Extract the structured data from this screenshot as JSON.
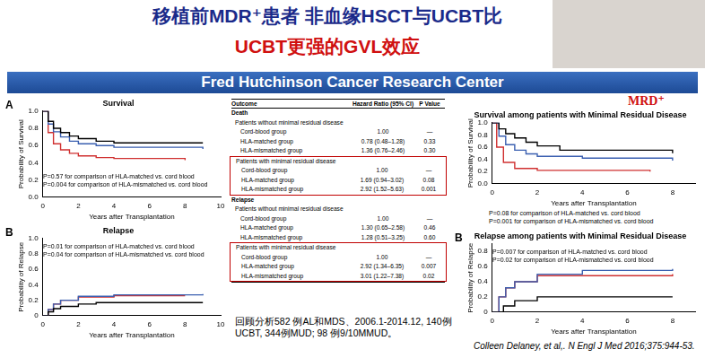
{
  "slide": {
    "title": "移植前MDR⁺患者  非血缘HSCT与UCBT比",
    "subtitle": "UCBT更强的GVL效应",
    "banner": "Fred Hutchinson Cancer Research Center",
    "badge": "MRD⁺",
    "note": "回顾分析582 例AL和MDS、2006.1-2014.12, 140例UCBT, 344例MUD; 98 例9/10MMUD。",
    "citation": "Colleen Delaney, et al,. N Engl J Med 2016;375:944-53."
  },
  "table": {
    "columns": [
      "Outcome",
      "Hazard Ratio (95% CI)",
      "P Value"
    ],
    "sections": [
      {
        "title": "Death",
        "groups": [
          {
            "title": "Patients without minimal residual disease",
            "rows": [
              [
                "Cord-blood group",
                "1.00",
                "—"
              ],
              [
                "HLA-matched group",
                "0.78 (0.48–1.28)",
                "0.33"
              ],
              [
                "HLA-mismatched group",
                "1.36 (0.76–2.46)",
                "0.30"
              ]
            ]
          },
          {
            "title": "Patients with minimal residual disease",
            "rows": [
              [
                "Cord-blood group",
                "1.00",
                "—"
              ],
              [
                "HLA-matched group",
                "1.69 (0.94–3.02)",
                "0.08"
              ],
              [
                "HLA-mismatched group",
                "2.92 (1.52–5.63)",
                "0.001"
              ]
            ]
          }
        ]
      },
      {
        "title": "Relapse",
        "groups": [
          {
            "title": "Patients without minimal residual disease",
            "rows": [
              [
                "Cord-blood group",
                "1.00",
                "—"
              ],
              [
                "HLA-matched group",
                "1.30 (0.65–2.58)",
                "0.46"
              ],
              [
                "HLA-mismatched group",
                "1.28 (0.51–3.25)",
                "0.60"
              ]
            ]
          },
          {
            "title": "Patients with minimal residual disease",
            "rows": [
              [
                "Cord-blood group",
                "1.00",
                "—"
              ],
              [
                "HLA-matched group",
                "2.92 (1.34–6.35)",
                "0.007"
              ],
              [
                "HLA-mismatched group",
                "3.01 (1.22–7.38)",
                "0.02"
              ]
            ]
          }
        ]
      }
    ]
  },
  "chart_data": [
    {
      "type": "line",
      "label": "A",
      "title": "Survival",
      "x_label": "Years after Transplantation",
      "y_label": "Probability of Survival",
      "xlim": [
        0,
        10
      ],
      "xticks": [
        0,
        2,
        4,
        6,
        8,
        10
      ],
      "ylim": [
        0,
        1
      ],
      "yticks": [
        {
          "value": 0,
          "label": "0.0"
        },
        0.2,
        0.4,
        0.6,
        0.8,
        {
          "value": 1,
          "label": "1.0"
        }
      ],
      "grid": false,
      "annotations": [
        "P=0.57 for comparison of HLA-matched vs. cord blood",
        "P=0.004 for comparison of HLA-mismatched vs. cord blood"
      ],
      "series": [
        {
          "color": "#000000",
          "line_style": "steps",
          "x": [
            0,
            0.3,
            0.6,
            1,
            1.5,
            2,
            3,
            4,
            9
          ],
          "values": [
            1,
            0.88,
            0.8,
            0.75,
            0.71,
            0.68,
            0.65,
            0.63,
            0.63
          ]
        },
        {
          "color": "#3a5fb0",
          "line_style": "steps",
          "x": [
            0,
            0.3,
            0.6,
            1,
            1.5,
            2,
            3,
            4,
            9
          ],
          "values": [
            1,
            0.85,
            0.76,
            0.7,
            0.65,
            0.62,
            0.6,
            0.58,
            0.56
          ]
        },
        {
          "color": "#d03030",
          "line_style": "steps",
          "x": [
            0,
            0.3,
            0.6,
            1,
            1.5,
            2,
            3,
            4,
            8
          ],
          "values": [
            1,
            0.75,
            0.62,
            0.55,
            0.51,
            0.48,
            0.46,
            0.45,
            0.43
          ]
        }
      ]
    },
    {
      "type": "line",
      "label": "B",
      "title": "Relapse",
      "x_label": "Years after Transplantation",
      "y_label": "Probability of Relapse",
      "xlim": [
        0,
        10
      ],
      "xticks": [
        0,
        2,
        4,
        6,
        8,
        10
      ],
      "ylim": [
        0,
        1
      ],
      "yticks": [
        0,
        0.2,
        0.4,
        0.6,
        0.8,
        {
          "value": 1,
          "label": "1.0"
        }
      ],
      "grid": false,
      "annotations": [
        "P=0.01 for comparison of HLA-matched vs. cord blood",
        "P=0.04 for comparison of HLA-mismatched vs. cord blood"
      ],
      "series": [
        {
          "color": "#000000",
          "line_style": "steps",
          "x": [
            0,
            0.3,
            0.6,
            1,
            2,
            3,
            9
          ],
          "values": [
            0,
            0.05,
            0.09,
            0.12,
            0.15,
            0.17,
            0.17
          ]
        },
        {
          "color": "#3a5fb0",
          "line_style": "steps",
          "x": [
            0,
            0.3,
            0.6,
            1,
            2,
            4,
            9
          ],
          "values": [
            0,
            0.08,
            0.15,
            0.2,
            0.25,
            0.27,
            0.28
          ]
        },
        {
          "color": "#d03030",
          "line_style": "steps",
          "x": [
            0,
            0.3,
            0.6,
            1,
            2,
            4,
            8
          ],
          "values": [
            0,
            0.08,
            0.15,
            0.2,
            0.24,
            0.26,
            0.26
          ]
        }
      ]
    },
    {
      "type": "line",
      "title": "Survival among patients with Minimal Residual Disease",
      "x_label": "Years after Transplantation",
      "y_label": "Probability of Survival",
      "xlim": [
        0,
        9
      ],
      "xticks": [
        0,
        2,
        4,
        6,
        8
      ],
      "ylim": [
        0,
        1
      ],
      "yticks": [
        {
          "value": 0,
          "label": "0.0"
        },
        0.2,
        0.4,
        0.6,
        0.8,
        {
          "value": 1,
          "label": "1.0"
        }
      ],
      "grid": false,
      "annotations": [
        "P=0.08 for comparison of HLA-matched vs. cord blood",
        "P=0.001 for comparison of HLA-mismatched vs. cord blood"
      ],
      "series": [
        {
          "color": "#000000",
          "line_style": "steps",
          "x": [
            0,
            0.3,
            0.6,
            1,
            1.5,
            2,
            3,
            8
          ],
          "values": [
            1,
            0.9,
            0.82,
            0.75,
            0.68,
            0.62,
            0.55,
            0.5
          ]
        },
        {
          "color": "#3a5fb0",
          "line_style": "steps",
          "x": [
            0,
            0.3,
            0.6,
            1,
            1.5,
            2,
            4,
            8
          ],
          "values": [
            1,
            0.78,
            0.64,
            0.55,
            0.49,
            0.45,
            0.42,
            0.38
          ]
        },
        {
          "color": "#d03030",
          "line_style": "steps",
          "x": [
            0,
            0.2,
            0.5,
            1,
            2,
            7
          ],
          "values": [
            1,
            0.6,
            0.35,
            0.25,
            0.22,
            0.2
          ]
        }
      ]
    },
    {
      "type": "line",
      "label": "B",
      "title": "Relapse among patients with Minimal Residual Disease",
      "x_label": "Years after Transplantation",
      "y_label": "Probability of Relapse",
      "xlim": [
        0,
        9
      ],
      "xticks": [
        0,
        2,
        4,
        6,
        8
      ],
      "ylim": [
        0,
        0.9
      ],
      "yticks": [
        0,
        0.2,
        0.4,
        0.6,
        0.8
      ],
      "grid": false,
      "annotations": [
        "P=0.007 for comparison of HLA-matched vs. cord blood",
        "P=0.02 for comparison of HLA-mismatched vs. cord blood"
      ],
      "series": [
        {
          "color": "#000000",
          "line_style": "steps",
          "x": [
            0,
            0.5,
            1,
            2,
            8
          ],
          "values": [
            0,
            0.08,
            0.15,
            0.2,
            0.2
          ]
        },
        {
          "color": "#3a5fb0",
          "line_style": "steps",
          "x": [
            0,
            0.3,
            0.6,
            1,
            2,
            4,
            8
          ],
          "values": [
            0,
            0.2,
            0.32,
            0.4,
            0.5,
            0.55,
            0.57
          ]
        },
        {
          "color": "#d03030",
          "line_style": "steps",
          "x": [
            0,
            0.3,
            0.6,
            1,
            2,
            8
          ],
          "values": [
            0,
            0.2,
            0.32,
            0.4,
            0.48,
            0.5
          ]
        }
      ]
    }
  ]
}
